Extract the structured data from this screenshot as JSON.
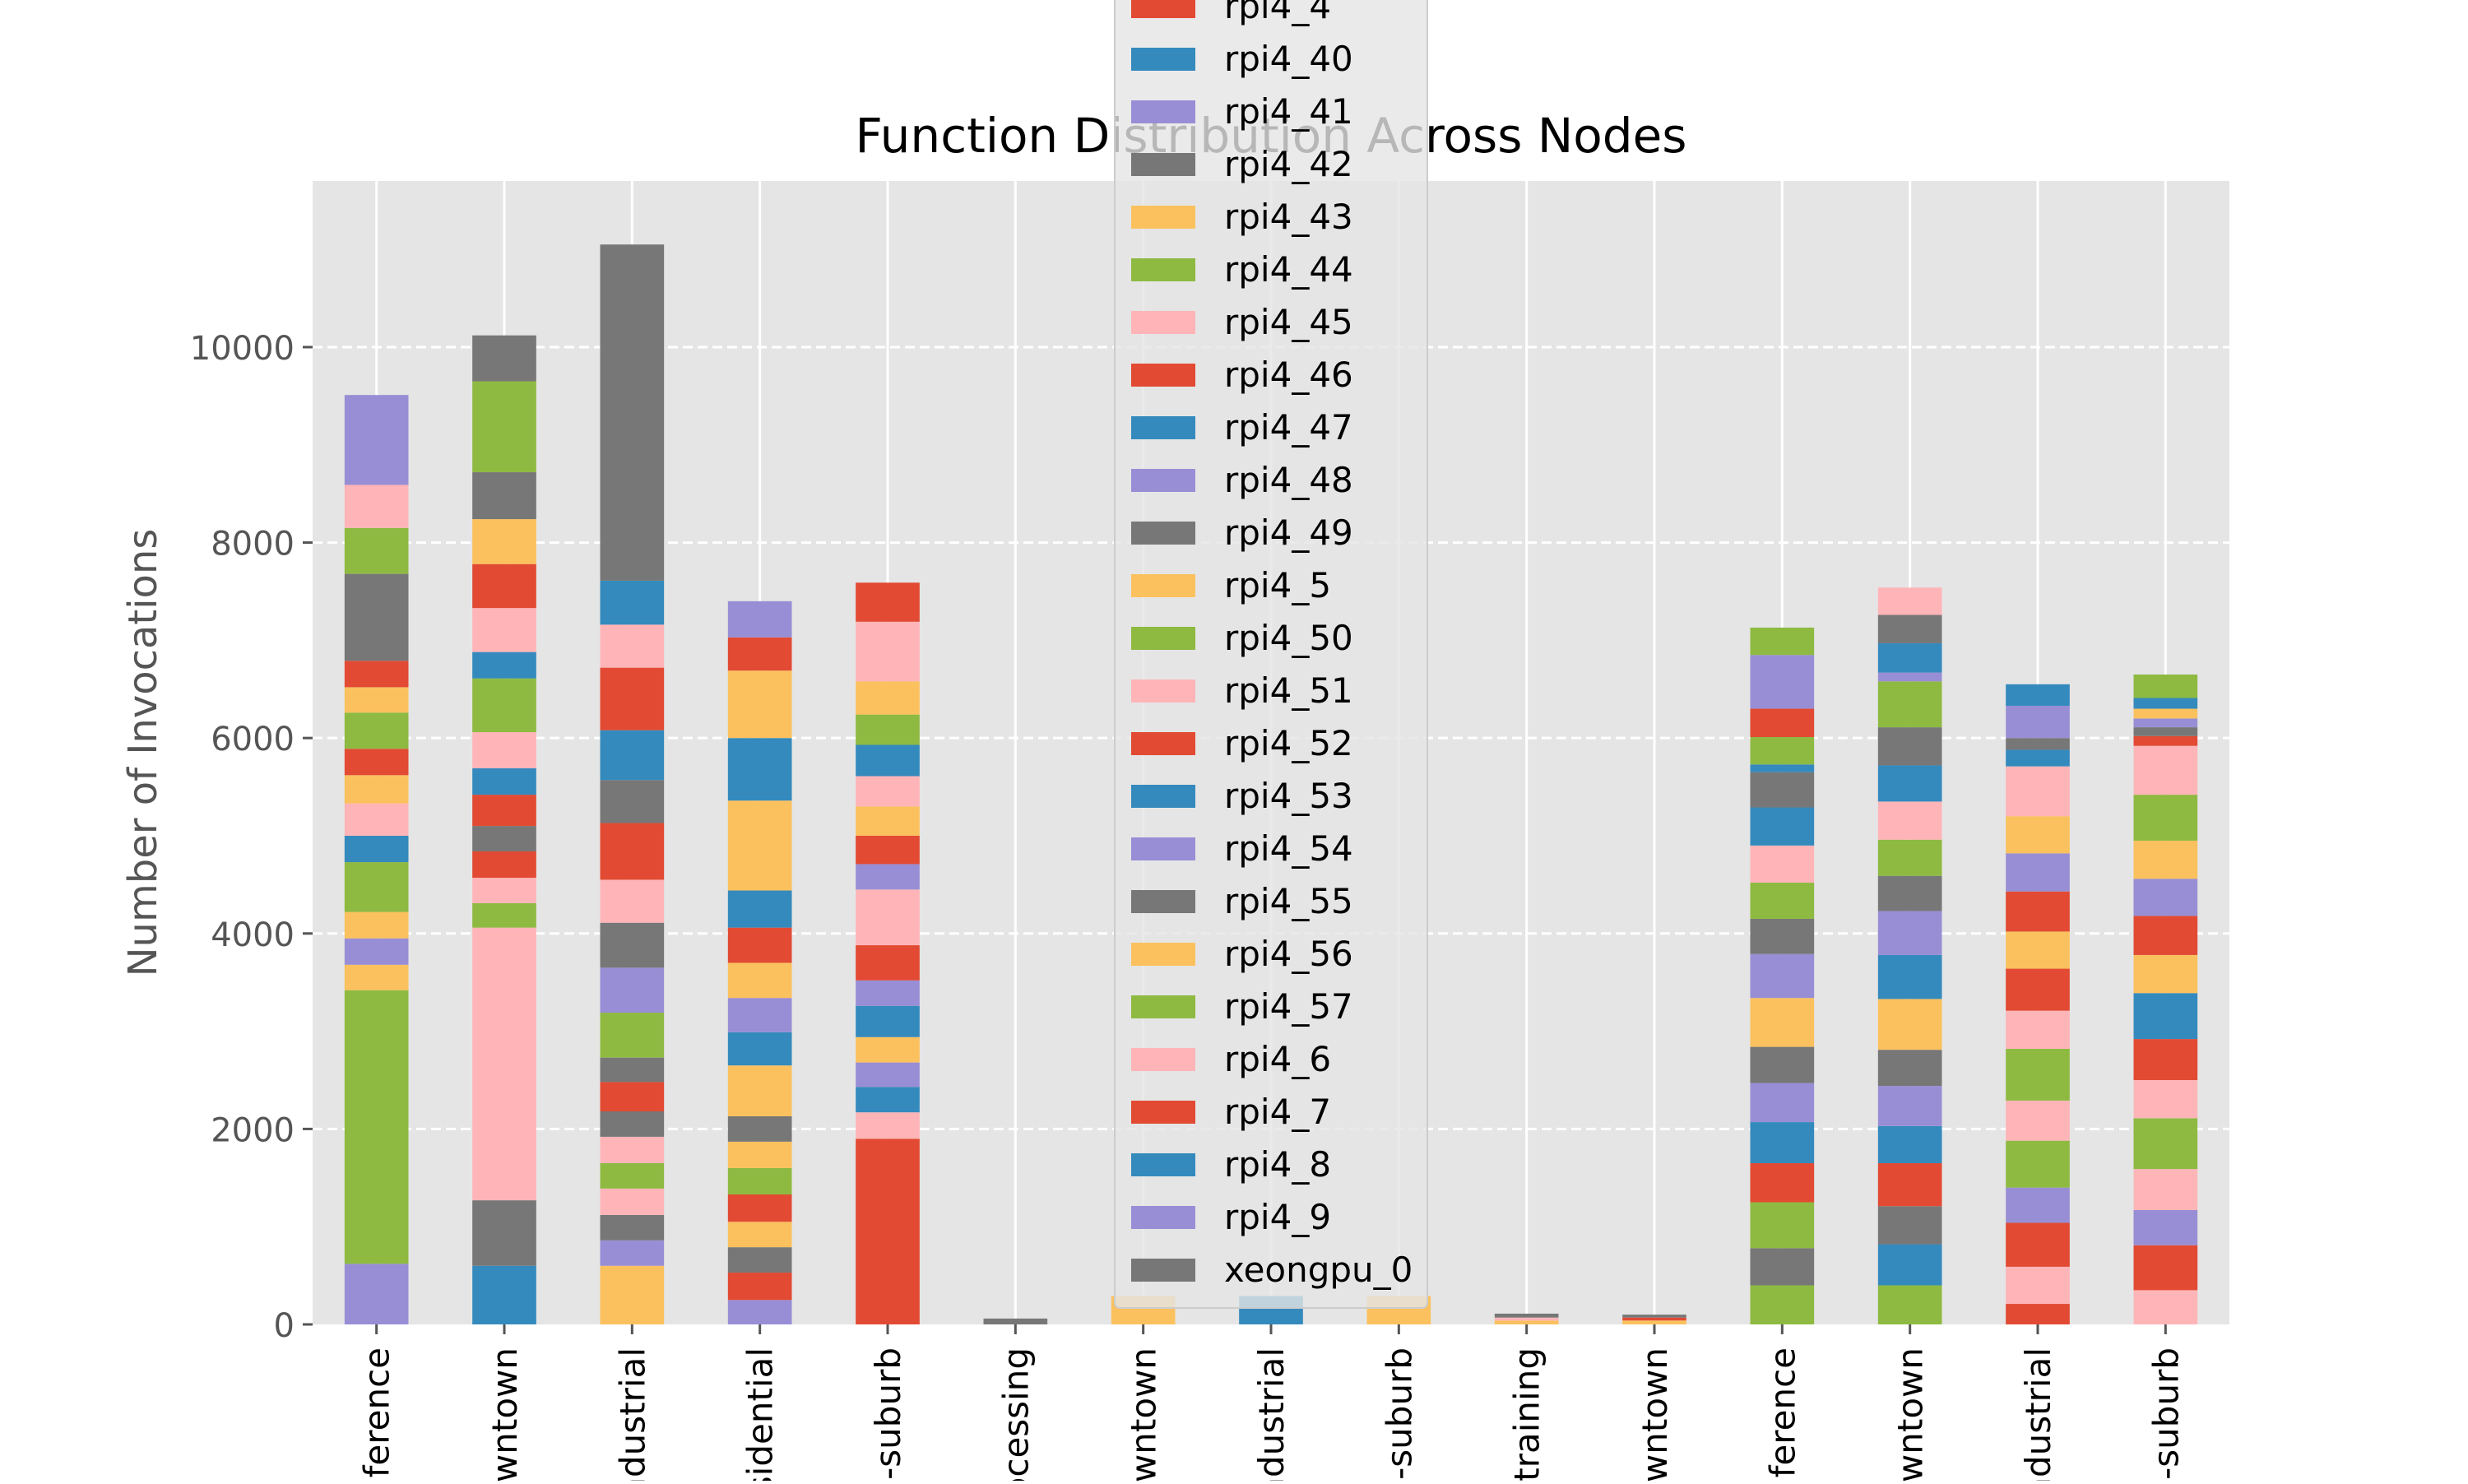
{
  "chart_data": {
    "type": "bar",
    "stacked": true,
    "title": "Function Distribution Across Nodes",
    "xlabel": "",
    "ylabel": "Number of Invocations",
    "ylim": [
      0,
      11700
    ],
    "yticks": [
      0,
      2000,
      4000,
      6000,
      8000,
      10000
    ],
    "grid": true,
    "legend_position": "upper center",
    "categories": [
      "nference",
      "wntown",
      "ndustrial",
      "sidential",
      "e-suburb",
      "ocessing",
      "wntown",
      "ndustrial",
      "n-suburb",
      "training",
      "wntown",
      "nference",
      "wntown",
      "ndustrial",
      "e-suburb"
    ],
    "bars": [
      [
        [
          0,
          620,
          "#988ED5"
        ],
        [
          620,
          3420,
          "#8EBA42"
        ],
        [
          3420,
          3680,
          "#FBC15E"
        ],
        [
          3680,
          3950,
          "#988ED5"
        ],
        [
          3950,
          4220,
          "#FBC15E"
        ],
        [
          4220,
          4730,
          "#8EBA42"
        ],
        [
          4730,
          5000,
          "#348ABD"
        ],
        [
          5000,
          5330,
          "#FFB5B8"
        ],
        [
          5330,
          5620,
          "#FBC15E"
        ],
        [
          5620,
          5890,
          "#E24A33"
        ],
        [
          5890,
          6260,
          "#8EBA42"
        ],
        [
          6260,
          6520,
          "#FBC15E"
        ],
        [
          6520,
          6790,
          "#E24A33"
        ],
        [
          6790,
          7680,
          "#777777"
        ],
        [
          7680,
          8150,
          "#8EBA42"
        ],
        [
          8150,
          8590,
          "#FFB5B8"
        ],
        [
          8590,
          9510,
          "#988ED5"
        ]
      ],
      [
        [
          0,
          600,
          "#348ABD"
        ],
        [
          600,
          1270,
          "#777777"
        ],
        [
          1270,
          4060,
          "#FFB5B8"
        ],
        [
          4060,
          4310,
          "#8EBA42"
        ],
        [
          4310,
          4570,
          "#FFB5B8"
        ],
        [
          4570,
          4840,
          "#E24A33"
        ],
        [
          4840,
          5100,
          "#777777"
        ],
        [
          5100,
          5420,
          "#E24A33"
        ],
        [
          5420,
          5690,
          "#348ABD"
        ],
        [
          5690,
          6060,
          "#FFB5B8"
        ],
        [
          6060,
          6610,
          "#8EBA42"
        ],
        [
          6610,
          6880,
          "#348ABD"
        ],
        [
          6880,
          7330,
          "#FFB5B8"
        ],
        [
          7330,
          7780,
          "#E24A33"
        ],
        [
          7780,
          8240,
          "#FBC15E"
        ],
        [
          8240,
          8720,
          "#777777"
        ],
        [
          8720,
          9650,
          "#8EBA42"
        ],
        [
          9650,
          10120,
          "#777777"
        ]
      ],
      [
        [
          0,
          600,
          "#FBC15E"
        ],
        [
          600,
          860,
          "#988ED5"
        ],
        [
          860,
          1120,
          "#777777"
        ],
        [
          1120,
          1390,
          "#FFB5B8"
        ],
        [
          1390,
          1650,
          "#8EBA42"
        ],
        [
          1650,
          1920,
          "#FFB5B8"
        ],
        [
          1920,
          2180,
          "#777777"
        ],
        [
          2180,
          2480,
          "#E24A33"
        ],
        [
          2480,
          2730,
          "#777777"
        ],
        [
          2730,
          3190,
          "#8EBA42"
        ],
        [
          3190,
          3650,
          "#988ED5"
        ],
        [
          3650,
          4110,
          "#777777"
        ],
        [
          4110,
          4550,
          "#FFB5B8"
        ],
        [
          4550,
          5130,
          "#E24A33"
        ],
        [
          5130,
          5570,
          "#777777"
        ],
        [
          5570,
          6080,
          "#348ABD"
        ],
        [
          6080,
          6720,
          "#E24A33"
        ],
        [
          6720,
          7160,
          "#FFB5B8"
        ],
        [
          7160,
          7610,
          "#348ABD"
        ],
        [
          7610,
          11050,
          "#777777"
        ]
      ],
      [
        [
          0,
          250,
          "#988ED5"
        ],
        [
          250,
          530,
          "#E24A33"
        ],
        [
          530,
          790,
          "#777777"
        ],
        [
          790,
          1050,
          "#FBC15E"
        ],
        [
          1050,
          1330,
          "#E24A33"
        ],
        [
          1330,
          1600,
          "#8EBA42"
        ],
        [
          1600,
          1870,
          "#FBC15E"
        ],
        [
          1870,
          2130,
          "#777777"
        ],
        [
          2130,
          2650,
          "#FBC15E"
        ],
        [
          2650,
          2990,
          "#348ABD"
        ],
        [
          2990,
          3340,
          "#988ED5"
        ],
        [
          3340,
          3700,
          "#FBC15E"
        ],
        [
          3700,
          4060,
          "#E24A33"
        ],
        [
          4060,
          4440,
          "#348ABD"
        ],
        [
          4440,
          5360,
          "#FBC15E"
        ],
        [
          5360,
          6000,
          "#348ABD"
        ],
        [
          6000,
          6690,
          "#FBC15E"
        ],
        [
          6690,
          7030,
          "#E24A33"
        ],
        [
          7030,
          7400,
          "#988ED5"
        ]
      ],
      [
        [
          0,
          1900,
          "#E24A33"
        ],
        [
          1900,
          2170,
          "#FFB5B8"
        ],
        [
          2170,
          2430,
          "#348ABD"
        ],
        [
          2430,
          2680,
          "#988ED5"
        ],
        [
          2680,
          2940,
          "#FBC15E"
        ],
        [
          2940,
          3260,
          "#348ABD"
        ],
        [
          3260,
          3520,
          "#988ED5"
        ],
        [
          3520,
          3880,
          "#E24A33"
        ],
        [
          3880,
          4450,
          "#FFB5B8"
        ],
        [
          4450,
          4710,
          "#988ED5"
        ],
        [
          4710,
          5000,
          "#E24A33"
        ],
        [
          5000,
          5300,
          "#FBC15E"
        ],
        [
          5300,
          5610,
          "#FFB5B8"
        ],
        [
          5610,
          5930,
          "#348ABD"
        ],
        [
          5930,
          6240,
          "#8EBA42"
        ],
        [
          6240,
          6580,
          "#FBC15E"
        ],
        [
          6580,
          7190,
          "#FFB5B8"
        ],
        [
          7190,
          7590,
          "#E24A33"
        ]
      ],
      [
        [
          0,
          60,
          "#777777"
        ]
      ],
      [
        [
          0,
          290,
          "#FBC15E"
        ]
      ],
      [
        [
          0,
          290,
          "#348ABD"
        ]
      ],
      [
        [
          0,
          290,
          "#FBC15E"
        ]
      ],
      [
        [
          0,
          40,
          "#FBC15E"
        ],
        [
          40,
          70,
          "#FFB5B8"
        ],
        [
          70,
          110,
          "#777777"
        ]
      ],
      [
        [
          0,
          40,
          "#FBC15E"
        ],
        [
          40,
          70,
          "#E24A33"
        ],
        [
          70,
          100,
          "#777777"
        ]
      ],
      [
        [
          0,
          400,
          "#8EBA42"
        ],
        [
          400,
          780,
          "#777777"
        ],
        [
          780,
          1250,
          "#8EBA42"
        ],
        [
          1250,
          1650,
          "#E24A33"
        ],
        [
          1650,
          2070,
          "#348ABD"
        ],
        [
          2070,
          2470,
          "#988ED5"
        ],
        [
          2470,
          2840,
          "#777777"
        ],
        [
          2840,
          3340,
          "#FBC15E"
        ],
        [
          3340,
          3790,
          "#988ED5"
        ],
        [
          3790,
          4150,
          "#777777"
        ],
        [
          4150,
          4520,
          "#8EBA42"
        ],
        [
          4520,
          4900,
          "#FFB5B8"
        ],
        [
          4900,
          5290,
          "#348ABD"
        ],
        [
          5290,
          5650,
          "#777777"
        ],
        [
          5650,
          5730,
          "#348ABD"
        ],
        [
          5730,
          6010,
          "#8EBA42"
        ],
        [
          6010,
          6300,
          "#E24A33"
        ],
        [
          6300,
          6850,
          "#988ED5"
        ],
        [
          6850,
          7130,
          "#8EBA42"
        ]
      ],
      [
        [
          0,
          400,
          "#8EBA42"
        ],
        [
          400,
          820,
          "#348ABD"
        ],
        [
          820,
          1210,
          "#777777"
        ],
        [
          1210,
          1650,
          "#E24A33"
        ],
        [
          1650,
          2030,
          "#348ABD"
        ],
        [
          2030,
          2440,
          "#988ED5"
        ],
        [
          2440,
          2810,
          "#777777"
        ],
        [
          2810,
          3330,
          "#FBC15E"
        ],
        [
          3330,
          3780,
          "#348ABD"
        ],
        [
          3780,
          4230,
          "#988ED5"
        ],
        [
          4230,
          4590,
          "#777777"
        ],
        [
          4590,
          4960,
          "#8EBA42"
        ],
        [
          4960,
          5350,
          "#FFB5B8"
        ],
        [
          5350,
          5720,
          "#348ABD"
        ],
        [
          5720,
          6110,
          "#777777"
        ],
        [
          6110,
          6580,
          "#8EBA42"
        ],
        [
          6580,
          6670,
          "#988ED5"
        ],
        [
          6670,
          6970,
          "#348ABD"
        ],
        [
          6970,
          7260,
          "#777777"
        ],
        [
          7260,
          7540,
          "#FFB5B8"
        ]
      ],
      [
        [
          0,
          210,
          "#E24A33"
        ],
        [
          210,
          590,
          "#FFB5B8"
        ],
        [
          590,
          1040,
          "#E24A33"
        ],
        [
          1040,
          1400,
          "#988ED5"
        ],
        [
          1400,
          1880,
          "#8EBA42"
        ],
        [
          1880,
          2290,
          "#FFB5B8"
        ],
        [
          2290,
          2820,
          "#8EBA42"
        ],
        [
          2820,
          3210,
          "#FFB5B8"
        ],
        [
          3210,
          3640,
          "#E24A33"
        ],
        [
          3640,
          4020,
          "#FBC15E"
        ],
        [
          4020,
          4430,
          "#E24A33"
        ],
        [
          4430,
          4820,
          "#988ED5"
        ],
        [
          4820,
          5200,
          "#FBC15E"
        ],
        [
          5200,
          5710,
          "#FFB5B8"
        ],
        [
          5710,
          5880,
          "#348ABD"
        ],
        [
          5880,
          6000,
          "#777777"
        ],
        [
          6000,
          6330,
          "#988ED5"
        ],
        [
          6330,
          6550,
          "#348ABD"
        ]
      ],
      [
        [
          0,
          350,
          "#FFB5B8"
        ],
        [
          350,
          810,
          "#E24A33"
        ],
        [
          810,
          1170,
          "#988ED5"
        ],
        [
          1170,
          1590,
          "#FFB5B8"
        ],
        [
          1590,
          2110,
          "#8EBA42"
        ],
        [
          2110,
          2500,
          "#FFB5B8"
        ],
        [
          2500,
          2920,
          "#E24A33"
        ],
        [
          2920,
          3390,
          "#348ABD"
        ],
        [
          3390,
          3780,
          "#FBC15E"
        ],
        [
          3780,
          4180,
          "#E24A33"
        ],
        [
          4180,
          4560,
          "#988ED5"
        ],
        [
          4560,
          4950,
          "#FBC15E"
        ],
        [
          4950,
          5420,
          "#8EBA42"
        ],
        [
          5420,
          5920,
          "#FFB5B8"
        ],
        [
          5920,
          6020,
          "#E24A33"
        ],
        [
          6020,
          6110,
          "#777777"
        ],
        [
          6110,
          6200,
          "#988ED5"
        ],
        [
          6200,
          6300,
          "#FBC15E"
        ],
        [
          6300,
          6410,
          "#348ABD"
        ],
        [
          6410,
          6650,
          "#8EBA42"
        ]
      ]
    ],
    "legend_clipped_partial_entry": {
      "name": "rpi4_4",
      "color": "#E24A33"
    },
    "legend": [
      {
        "name": "rpi4_40",
        "color": "#348ABD"
      },
      {
        "name": "rpi4_41",
        "color": "#988ED5"
      },
      {
        "name": "rpi4_42",
        "color": "#777777"
      },
      {
        "name": "rpi4_43",
        "color": "#FBC15E"
      },
      {
        "name": "rpi4_44",
        "color": "#8EBA42"
      },
      {
        "name": "rpi4_45",
        "color": "#FFB5B8"
      },
      {
        "name": "rpi4_46",
        "color": "#E24A33"
      },
      {
        "name": "rpi4_47",
        "color": "#348ABD"
      },
      {
        "name": "rpi4_48",
        "color": "#988ED5"
      },
      {
        "name": "rpi4_49",
        "color": "#777777"
      },
      {
        "name": "rpi4_5",
        "color": "#FBC15E"
      },
      {
        "name": "rpi4_50",
        "color": "#8EBA42"
      },
      {
        "name": "rpi4_51",
        "color": "#FFB5B8"
      },
      {
        "name": "rpi4_52",
        "color": "#E24A33"
      },
      {
        "name": "rpi4_53",
        "color": "#348ABD"
      },
      {
        "name": "rpi4_54",
        "color": "#988ED5"
      },
      {
        "name": "rpi4_55",
        "color": "#777777"
      },
      {
        "name": "rpi4_56",
        "color": "#FBC15E"
      },
      {
        "name": "rpi4_57",
        "color": "#8EBA42"
      },
      {
        "name": "rpi4_6",
        "color": "#FFB5B8"
      },
      {
        "name": "rpi4_7",
        "color": "#E24A33"
      },
      {
        "name": "rpi4_8",
        "color": "#348ABD"
      },
      {
        "name": "rpi4_9",
        "color": "#988ED5"
      },
      {
        "name": "xeongpu_0",
        "color": "#777777"
      }
    ]
  }
}
